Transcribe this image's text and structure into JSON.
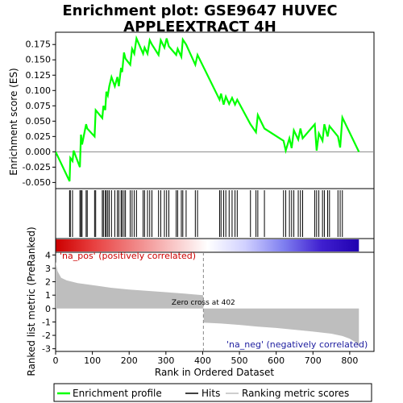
{
  "title_line1": "Enrichment plot: GSE9647 HUVEC",
  "title_line2": "APPLEEXTRACT 4H",
  "chart_data": {
    "type": "line",
    "xlabel": "Rank in Ordered Dataset",
    "x_ticks": [
      0,
      100,
      200,
      300,
      400,
      500,
      600,
      700,
      800
    ],
    "xlim": [
      0,
      866
    ],
    "es_panel": {
      "ylabel": "Enrichment score (ES)",
      "ylim": [
        -0.06,
        0.195
      ],
      "y_ticks": [
        -0.05,
        -0.025,
        0.0,
        0.025,
        0.05,
        0.075,
        0.1,
        0.125,
        0.15,
        0.175
      ],
      "y_tick_labels": [
        "-0.050",
        "-0.025",
        "0.000",
        "0.025",
        "0.050",
        "0.075",
        "0.100",
        "0.125",
        "0.150",
        "0.175"
      ],
      "series": [
        {
          "name": "Enrichment profile",
          "color": "#00ff00",
          "x": [
            0,
            38,
            40,
            46,
            49,
            66,
            69,
            72,
            83,
            86,
            106,
            109,
            127,
            130,
            135,
            138,
            142,
            146,
            152,
            161,
            168,
            172,
            178,
            181,
            186,
            190,
            203,
            208,
            214,
            220,
            238,
            242,
            250,
            256,
            262,
            280,
            286,
            296,
            302,
            308,
            328,
            332,
            342,
            346,
            355,
            380,
            386,
            446,
            450,
            457,
            463,
            472,
            480,
            488,
            494,
            530,
            545,
            550,
            568,
            620,
            626,
            636,
            642,
            648,
            660,
            666,
            672,
            705,
            710,
            716,
            726,
            731,
            740,
            745,
            768,
            774,
            780,
            825
          ],
          "y": [
            0.0,
            -0.048,
            -0.01,
            -0.015,
            0.002,
            -0.025,
            0.028,
            0.012,
            0.045,
            0.038,
            0.025,
            0.068,
            0.055,
            0.075,
            0.068,
            0.098,
            0.092,
            0.107,
            0.122,
            0.107,
            0.122,
            0.107,
            0.137,
            0.13,
            0.162,
            0.152,
            0.142,
            0.168,
            0.16,
            0.185,
            0.16,
            0.17,
            0.16,
            0.182,
            0.175,
            0.158,
            0.182,
            0.17,
            0.185,
            0.172,
            0.158,
            0.168,
            0.155,
            0.183,
            0.175,
            0.142,
            0.158,
            0.085,
            0.095,
            0.077,
            0.09,
            0.078,
            0.088,
            0.077,
            0.085,
            0.045,
            0.032,
            0.06,
            0.038,
            0.018,
            0.002,
            0.022,
            0.006,
            0.035,
            0.02,
            0.038,
            0.022,
            0.045,
            0.002,
            0.03,
            0.018,
            0.045,
            0.025,
            0.042,
            0.025,
            0.007,
            0.056,
            0.0
          ]
        }
      ]
    },
    "hits": {
      "name": "Hits",
      "color": "#000000",
      "x": [
        38,
        40,
        46,
        66,
        69,
        72,
        83,
        86,
        106,
        109,
        127,
        130,
        135,
        138,
        142,
        146,
        152,
        161,
        168,
        172,
        178,
        181,
        186,
        190,
        203,
        208,
        214,
        220,
        238,
        242,
        250,
        256,
        262,
        280,
        286,
        296,
        302,
        308,
        328,
        332,
        342,
        346,
        355,
        380,
        386,
        446,
        450,
        457,
        463,
        472,
        480,
        488,
        494,
        530,
        545,
        550,
        568,
        620,
        626,
        636,
        642,
        648,
        660,
        666,
        672,
        705,
        710,
        716,
        726,
        731,
        740,
        745,
        768,
        774,
        780
      ]
    },
    "ranked_list_panel": {
      "ylabel": "Ranked list metric (PreRanked)",
      "ylim": [
        -3.2,
        4.2
      ],
      "y_ticks": [
        -3,
        -2,
        -1,
        0,
        1,
        2,
        3,
        4
      ],
      "series": [
        {
          "name": "Ranking metric scores",
          "color": "#bebebe",
          "x": [
            0,
            5,
            15,
            30,
            60,
            100,
            150,
            200,
            250,
            300,
            350,
            401,
            402,
            403,
            450,
            500,
            550,
            600,
            650,
            700,
            750,
            780,
            800,
            815,
            825
          ],
          "y": [
            3.5,
            2.8,
            2.3,
            2.1,
            1.9,
            1.75,
            1.55,
            1.42,
            1.32,
            1.22,
            1.12,
            1.0,
            0.0,
            -1.05,
            -1.12,
            -1.22,
            -1.35,
            -1.45,
            -1.58,
            -1.72,
            -1.88,
            -2.05,
            -2.25,
            -2.5,
            -2.85
          ]
        }
      ]
    },
    "zero_cross": {
      "rank": 402,
      "label": "Zero cross at 402"
    },
    "annotations": {
      "pos_label": "'na_pos' (positively correlated)",
      "neg_label": "'na_neg' (negatively correlated)"
    },
    "gradient_bar": {
      "colors": [
        "#cc0000",
        "#e84040",
        "#f08080",
        "#f8c0c0",
        "#ffffff",
        "#d0d0ff",
        "#8080f0",
        "#4020d0",
        "#2000b0"
      ]
    },
    "legend_position": "bottom",
    "legend": [
      {
        "label": "Enrichment profile",
        "color": "#00ff00"
      },
      {
        "label": "Hits",
        "color": "#000000"
      },
      {
        "label": "Ranking metric scores",
        "color": "#bebebe"
      }
    ]
  }
}
